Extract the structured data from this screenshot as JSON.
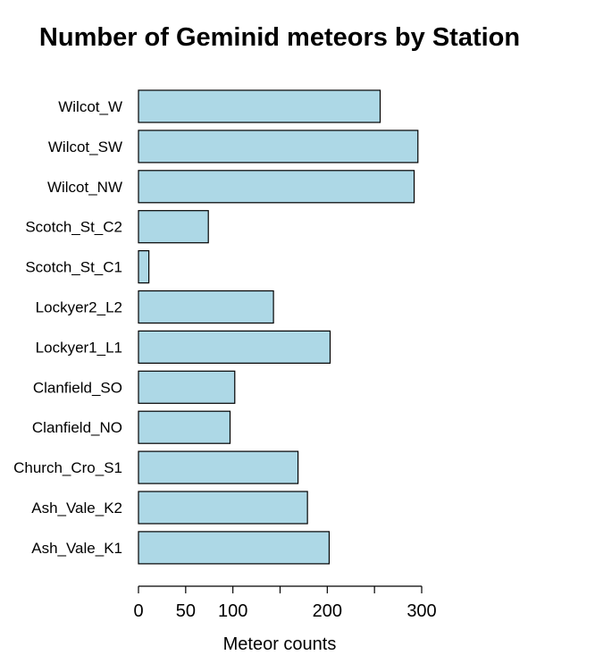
{
  "chart_data": {
    "type": "bar",
    "orientation": "horizontal",
    "title": "Number of Geminid meteors by Station",
    "xlabel": "Meteor counts",
    "ylabel": "",
    "xlim": [
      0,
      300
    ],
    "xticks": [
      0,
      50,
      100,
      150,
      200,
      250,
      300
    ],
    "xtick_labels": [
      "0",
      "50",
      "100",
      "",
      "200",
      "",
      "300"
    ],
    "grid": false,
    "bar_color": "#add8e6",
    "categories": [
      "Wilcot_W",
      "Wilcot_SW",
      "Wilcot_NW",
      "Scotch_St_C2",
      "Scotch_St_C1",
      "Lockyer2_L2",
      "Lockyer1_L1",
      "Clanfield_SO",
      "Clanfield_NO",
      "Church_Cro_S1",
      "Ash_Vale_K2",
      "Ash_Vale_K1"
    ],
    "values": [
      256,
      296,
      292,
      74,
      11,
      143,
      203,
      102,
      97,
      169,
      179,
      202
    ]
  }
}
